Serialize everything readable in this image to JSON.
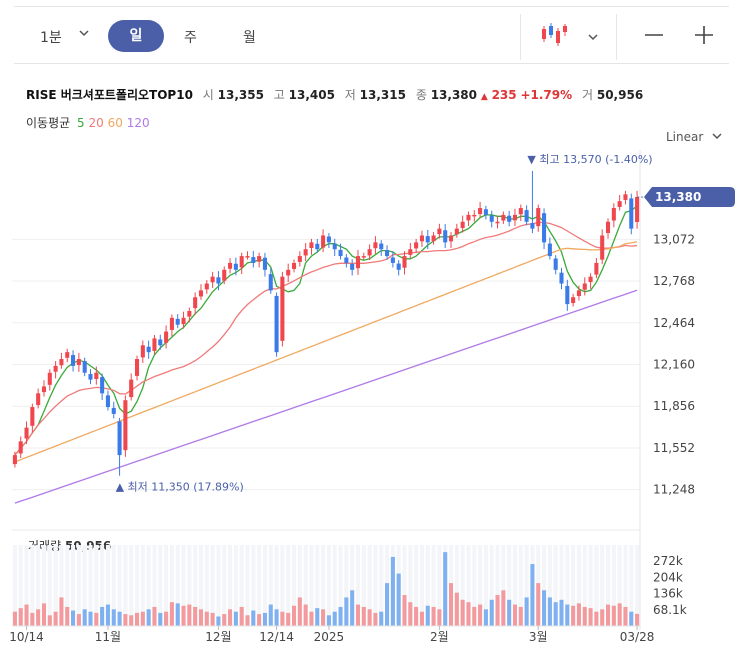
{
  "toolbar": {
    "periods": [
      "1분",
      "일",
      "주",
      "월"
    ],
    "active": "일",
    "minus_icon": "minus-icon",
    "plus_icon": "plus-icon",
    "chart_type_icon": "candlestick-icon"
  },
  "quote": {
    "name": "RISE 버크셔포트폴리오TOP10",
    "open_label": "시",
    "open": "13,355",
    "high_label": "고",
    "high": "13,405",
    "low_label": "저",
    "low": "13,315",
    "close_label": "종",
    "close": "13,380",
    "change_arrow": "▲",
    "change": "235",
    "change_pct": "+1.79%",
    "volume_label": "거",
    "volume": "50,956"
  },
  "moving_average": {
    "label": "이동평균",
    "periods": [
      "5",
      "20",
      "60",
      "120"
    ],
    "colors": [
      "#3aaa3a",
      "#f07a7a",
      "#f0a860",
      "#b07ae8"
    ]
  },
  "scale_label": "Linear",
  "colors": {
    "up": "#f0464d",
    "down": "#3b7be8",
    "accent": "#4a5fa8"
  },
  "chart_data": [
    {
      "type": "candlestick",
      "y_axis_ticks": [
        "13,072",
        "12,768",
        "12,464",
        "12,160",
        "11,856",
        "11,552",
        "11,248"
      ],
      "y_tick_values": [
        13072,
        12768,
        12464,
        12160,
        11856,
        11552,
        11248
      ],
      "ylim": [
        11100,
        13650
      ],
      "x_axis_labels": [
        "10/14",
        "11월",
        "12월",
        "12/14",
        "2025",
        "2월",
        "3월",
        "03/28"
      ],
      "x_label_index": [
        2,
        16,
        35,
        45,
        54,
        73,
        90,
        107
      ],
      "current_price": "13,380",
      "current_value": 13380,
      "max_annotation": "▼ 최고 13,570 (-1.40%)",
      "max_value": 13570,
      "max_index": 89,
      "min_annotation": "▲ 최저 11,350 (17.89%)",
      "min_value": 11350,
      "min_index": 18,
      "closes": [
        11500,
        11600,
        11700,
        11850,
        11950,
        12000,
        12100,
        12150,
        12200,
        12250,
        12150,
        12200,
        12100,
        12050,
        12100,
        11950,
        11850,
        11800,
        11500,
        11900,
        12050,
        12200,
        12300,
        12250,
        12350,
        12300,
        12400,
        12500,
        12450,
        12500,
        12550,
        12650,
        12700,
        12750,
        12800,
        12750,
        12850,
        12900,
        12850,
        12950,
        12950,
        12900,
        12950,
        12850,
        12700,
        12250,
        12800,
        12850,
        12900,
        12950,
        13000,
        13050,
        13000,
        13100,
        13050,
        13000,
        12950,
        12900,
        12850,
        12950,
        12950,
        13000,
        13050,
        13000,
        12950,
        12900,
        12850,
        12950,
        13000,
        13050,
        13100,
        13050,
        13100,
        13150,
        13050,
        13100,
        13150,
        13200,
        13250,
        13250,
        13300,
        13250,
        13200,
        13200,
        13250,
        13200,
        13250,
        13300,
        13200,
        13150,
        13300,
        13050,
        12950,
        12850,
        12750,
        12600,
        12650,
        12700,
        12750,
        12800,
        12900,
        13100,
        13200,
        13300,
        13350,
        13400,
        13150,
        13380
      ],
      "open_fractions": [
        0.6,
        0.4,
        0.7,
        0.3,
        0.5,
        0.6,
        0.4,
        0.5,
        0.3,
        0.6,
        0.7,
        0.4,
        0.5,
        0.6,
        0.3,
        0.7,
        0.5,
        0.4,
        0.6,
        0.3,
        0.5,
        0.6,
        0.4,
        0.7,
        0.3,
        0.5,
        0.6,
        0.4,
        0.5,
        0.3,
        0.6,
        0.7,
        0.4,
        0.5,
        0.6,
        0.3,
        0.7,
        0.5,
        0.4,
        0.6,
        0.3,
        0.5,
        0.6,
        0.4,
        0.7,
        0.3,
        0.5,
        0.6,
        0.4,
        0.5,
        0.3,
        0.6,
        0.7,
        0.4,
        0.5,
        0.6,
        0.3,
        0.7,
        0.5,
        0.4,
        0.6,
        0.3,
        0.5,
        0.6,
        0.4,
        0.7,
        0.3,
        0.5,
        0.6,
        0.4,
        0.5,
        0.3,
        0.6,
        0.7,
        0.4,
        0.5,
        0.6,
        0.3,
        0.7,
        0.5,
        0.4,
        0.6,
        0.3,
        0.5,
        0.6,
        0.4,
        0.7,
        0.3,
        0.5,
        0.6,
        0.4,
        0.5,
        0.3,
        0.6,
        0.7,
        0.4,
        0.5,
        0.6,
        0.3,
        0.7,
        0.5,
        0.4,
        0.6,
        0.3,
        0.5,
        0.6,
        0.4,
        0.7
      ],
      "volume_label": "거래량",
      "volume_value": "50,956",
      "volume_axis_ticks": [
        "272k",
        "204k",
        "136k",
        "68.1k"
      ],
      "volume_tick_values": [
        272000,
        204000,
        136000,
        68100
      ],
      "volume_max": 340000,
      "volumes": [
        60000,
        75000,
        90000,
        55000,
        70000,
        95000,
        45000,
        60000,
        120000,
        80000,
        65000,
        50000,
        70000,
        60000,
        55000,
        80000,
        90000,
        70000,
        60000,
        50000,
        45000,
        55000,
        60000,
        70000,
        80000,
        55000,
        60000,
        100000,
        95000,
        85000,
        90000,
        80000,
        70000,
        60000,
        55000,
        40000,
        50000,
        70000,
        60000,
        80000,
        45000,
        65000,
        50000,
        55000,
        90000,
        70000,
        60000,
        55000,
        85000,
        120000,
        90000,
        60000,
        75000,
        70000,
        45000,
        60000,
        80000,
        120000,
        150000,
        90000,
        80000,
        70000,
        55000,
        60000,
        180000,
        290000,
        220000,
        130000,
        100000,
        80000,
        60000,
        85000,
        80000,
        70000,
        310000,
        180000,
        140000,
        110000,
        100000,
        80000,
        90000,
        70000,
        110000,
        130000,
        150000,
        110000,
        90000,
        80000,
        120000,
        260000,
        180000,
        150000,
        120000,
        100000,
        110000,
        90000,
        85000,
        95000,
        80000,
        75000,
        60000,
        70000,
        90000,
        85000,
        95000,
        80000,
        60000,
        50956
      ]
    }
  ]
}
